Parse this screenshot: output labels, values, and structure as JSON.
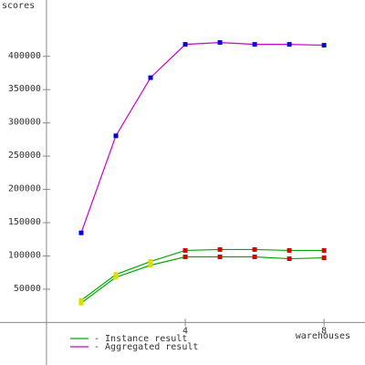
{
  "chart_data": {
    "type": "line",
    "y_label": "scores",
    "x_label": "warehouses",
    "xlim": [
      -1.34,
      9.18
    ],
    "ylim": [
      -63900,
      484700
    ],
    "xticks": [
      4,
      8
    ],
    "yticks": [
      50000,
      100000,
      150000,
      200000,
      250000,
      300000,
      350000,
      400000
    ],
    "x": [
      1,
      2,
      3,
      4,
      5,
      6,
      7,
      8
    ],
    "series": [
      {
        "color": "#00aa00",
        "marker_colors": [
          "#dddd00",
          "#dddd00",
          "#dddd00",
          "#dd0000",
          "#dd0000",
          "#dd0000",
          "#dd0000",
          "#dd0000"
        ],
        "values": [
          33300,
          72200,
          91700,
          108300,
          109700,
          109700,
          108300,
          108300
        ]
      },
      {
        "color": "#00aa00",
        "marker_colors": [
          "#dddd00",
          "#dddd00",
          "#dddd00",
          "#dd0000",
          "#dd0000",
          "#dd0000",
          "#dd0000",
          "#dd0000"
        ],
        "values": [
          29200,
          68000,
          86100,
          98600,
          98600,
          98600,
          95800,
          97200
        ]
      },
      {
        "color": "#cc00cc",
        "marker_colors": [
          "#0000dd",
          "#0000dd",
          "#0000dd",
          "#0000dd",
          "#0000dd",
          "#0000dd",
          "#0000dd",
          "#0000dd"
        ],
        "values": [
          134700,
          280600,
          368000,
          418000,
          420800,
          418000,
          418000,
          416700
        ]
      }
    ],
    "legend": [
      {
        "label": "- Instance result",
        "color": "#00aa00"
      },
      {
        "label": "- Aggregated result",
        "color": "#cc00cc"
      }
    ]
  }
}
